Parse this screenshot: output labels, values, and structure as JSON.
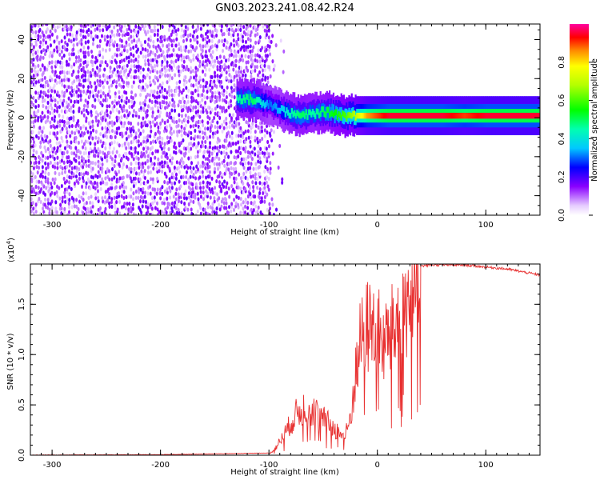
{
  "title": "GN03.2023.241.08.42.R24",
  "chart_data": [
    {
      "type": "heatmap",
      "xlabel": "Height of straight line (km)",
      "ylabel": "Frequency (Hz)",
      "xlim": [
        -320,
        150
      ],
      "ylim": [
        -50,
        48
      ],
      "xticks": [
        "-300",
        "-200",
        "-100",
        "0",
        "100"
      ],
      "yticks": [
        "-40",
        "-20",
        "0",
        "20",
        "40"
      ],
      "colorbar": {
        "label": "Normalized spectral amplitude",
        "range": [
          0,
          1
        ],
        "ticks": [
          "0.0",
          "0.2",
          "0.4",
          "0.6",
          "0.8"
        ]
      },
      "noise_region_x": [
        -320,
        -100
      ],
      "signal_trace": {
        "x": [
          -130,
          -115,
          -100,
          -90,
          -80,
          -70,
          -60,
          -50,
          -40,
          -30,
          -20,
          -10,
          0,
          10,
          20,
          40,
          60,
          80,
          100,
          120,
          150
        ],
        "frequency_hz": [
          10,
          9,
          7,
          4,
          2,
          1,
          2,
          3,
          2,
          1,
          1,
          1,
          1,
          1,
          1,
          1,
          1,
          1,
          1,
          1,
          1
        ],
        "peak_amplitude": [
          0.45,
          0.5,
          0.3,
          0.35,
          0.45,
          0.5,
          0.45,
          0.5,
          0.55,
          0.6,
          0.7,
          0.85,
          0.9,
          0.95,
          0.95,
          0.95,
          0.95,
          0.9,
          0.95,
          0.95,
          0.95
        ]
      }
    },
    {
      "type": "line",
      "xlabel": "Height of straight line (km)",
      "ylabel": "SNR (10 * v/v)",
      "y_multiplier": "(x10",
      "y_multiplier_exp": "4",
      "y_multiplier_close": ")",
      "xlim": [
        -320,
        150
      ],
      "ylim": [
        0,
        19000
      ],
      "xticks": [
        "-300",
        "-200",
        "-100",
        "0",
        "100"
      ],
      "yticks": [
        "0.0",
        "0.5",
        "1.0",
        "1.5"
      ],
      "series": [
        {
          "color": "#e83030",
          "x": [
            -320,
            -200,
            -100,
            -95,
            -90,
            -85,
            -80,
            -75,
            -70,
            -65,
            -60,
            -55,
            -50,
            -45,
            -40,
            -35,
            -30,
            -25,
            -20,
            -15,
            -10,
            -5,
            0,
            5,
            10,
            15,
            20,
            25,
            30,
            35,
            40,
            50,
            60,
            80,
            100,
            120,
            140,
            150
          ],
          "y": [
            0,
            30,
            200,
            600,
            1500,
            2500,
            3500,
            4500,
            5000,
            5500,
            5000,
            4500,
            4000,
            3500,
            3000,
            2500,
            2000,
            4000,
            9000,
            13000,
            14000,
            14500,
            14000,
            12000,
            13000,
            14000,
            15500,
            16500,
            17500,
            18200,
            18800,
            18900,
            18900,
            18900,
            18700,
            18500,
            18100,
            17900
          ]
        }
      ]
    }
  ]
}
